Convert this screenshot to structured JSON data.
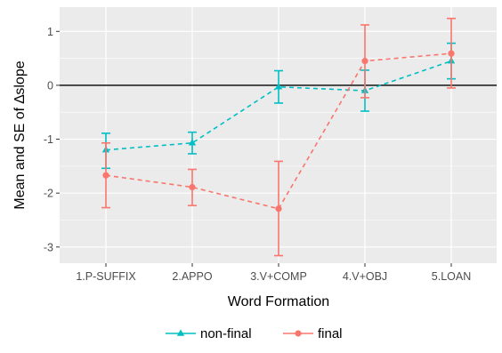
{
  "chart_data": {
    "type": "line",
    "xlabel": "Word Formation",
    "ylabel": "Mean and SE of ∆slope",
    "categories": [
      "1.P-SUFFIX",
      "2.APPO",
      "3.V+COMP",
      "4.V+OBJ",
      "5.LOAN"
    ],
    "ylim": [
      -3.3,
      1.45
    ],
    "yticks": [
      1,
      0,
      -1,
      -2,
      -3
    ],
    "ytick_labels": [
      "1",
      "0",
      "-1",
      "-2",
      "-3"
    ],
    "reference_line_y": 0,
    "grid": true,
    "legend_position": "bottom",
    "series": [
      {
        "name": "non-final",
        "color": "#00BFC4",
        "marker": "triangle",
        "line_style": "dashed",
        "values": [
          -1.2,
          -1.07,
          -0.03,
          -0.1,
          0.45
        ],
        "se_low": [
          -1.54,
          -1.27,
          -0.33,
          -0.48,
          0.12
        ],
        "se_high": [
          -0.89,
          -0.87,
          0.27,
          0.28,
          0.78
        ]
      },
      {
        "name": "final",
        "color": "#F8766D",
        "marker": "circle",
        "line_style": "dashed",
        "values": [
          -1.67,
          -1.89,
          -2.29,
          0.45,
          0.59
        ],
        "se_low": [
          -2.27,
          -2.23,
          -3.16,
          -0.23,
          -0.05
        ],
        "se_high": [
          -1.07,
          -1.56,
          -1.41,
          1.12,
          1.24
        ]
      }
    ]
  }
}
